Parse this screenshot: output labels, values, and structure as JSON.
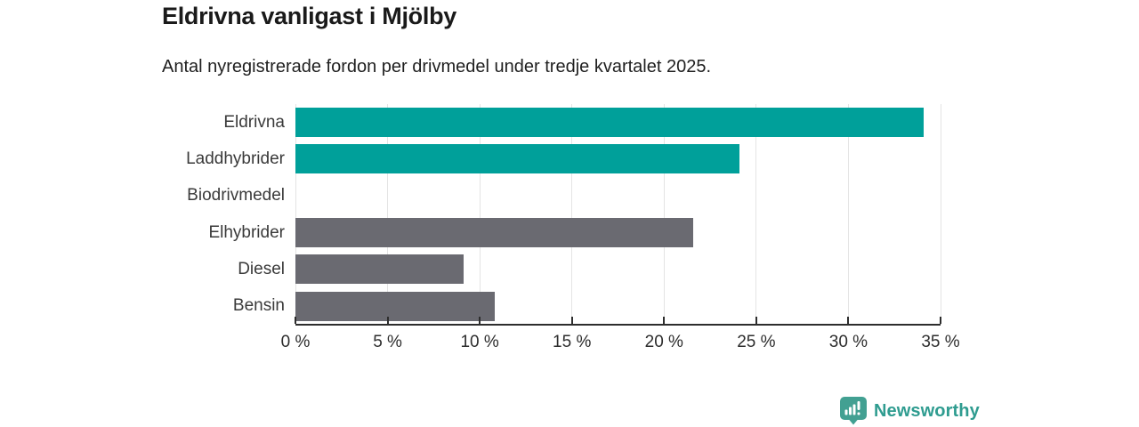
{
  "header": {
    "title": "Eldrivna vanligast i Mjölby",
    "subtitle": "Antal nyregistrerade fordon per drivmedel under tredje kvartalet 2025."
  },
  "chart_data": {
    "type": "bar",
    "orientation": "horizontal",
    "categories": [
      "Eldrivna",
      "Laddhybrider",
      "Biodrivmedel",
      "Elhybrider",
      "Diesel",
      "Bensin"
    ],
    "values": [
      34.1,
      24.1,
      0,
      21.6,
      9.1,
      10.8
    ],
    "unit": "%",
    "bar_colors": [
      "#00a09a",
      "#00a09a",
      "#6a6a71",
      "#6a6a71",
      "#6a6a71",
      "#6a6a71"
    ],
    "highlight_color": "#00a09a",
    "default_color": "#6a6a71",
    "xlim": [
      0,
      35
    ],
    "x_ticks": [
      0,
      5,
      10,
      15,
      20,
      25,
      30,
      35
    ],
    "x_tick_labels": [
      "0 %",
      "5 %",
      "10 %",
      "15 %",
      "20 %",
      "25 %",
      "30 %",
      "35 %"
    ],
    "grid": "vertical",
    "legend": "none",
    "title": "Eldrivna vanligast i Mjölby",
    "xlabel": "",
    "ylabel": ""
  },
  "footer": {
    "brand": "Newsworthy",
    "logo_icon": "bar-chart-speech-bubble-icon",
    "brand_text_color": "#2f9c90",
    "brand_icon_color": "#42a092"
  },
  "colors": {
    "grid": "#e4e4e4",
    "axis": "#2d2d2d",
    "category_text": "#3a3a3a",
    "title_text": "#1a1a1a"
  }
}
